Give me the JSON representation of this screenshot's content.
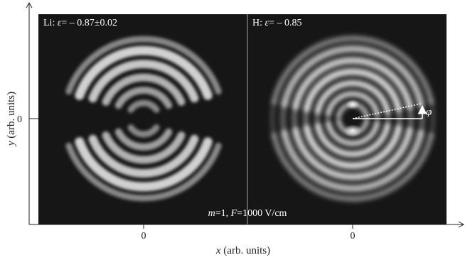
{
  "figure": {
    "left_panel_label": {
      "element": "Li",
      "sep": ": ",
      "eps": "ε",
      "value": "= – 0.87±0.02"
    },
    "right_panel_label": {
      "element": "H",
      "sep": ": ",
      "eps": "ε",
      "value": "= – 0.85"
    },
    "conditions": {
      "m_symbol": "m",
      "m_value": "=1, ",
      "F_symbol": "F",
      "F_value": "=1000 V/cm"
    },
    "phi_symbol": "φ",
    "x_axis": {
      "label": "x",
      "units": " (arb. units)",
      "ticks": [
        "0",
        "0"
      ]
    },
    "y_axis": {
      "label": "y",
      "units": " (arb. units)",
      "ticks": [
        "0"
      ]
    }
  },
  "colors": {
    "panel_bg": "#161616",
    "divider": "#8a8a8a",
    "text": "#ffffff",
    "axis": "#222222"
  }
}
